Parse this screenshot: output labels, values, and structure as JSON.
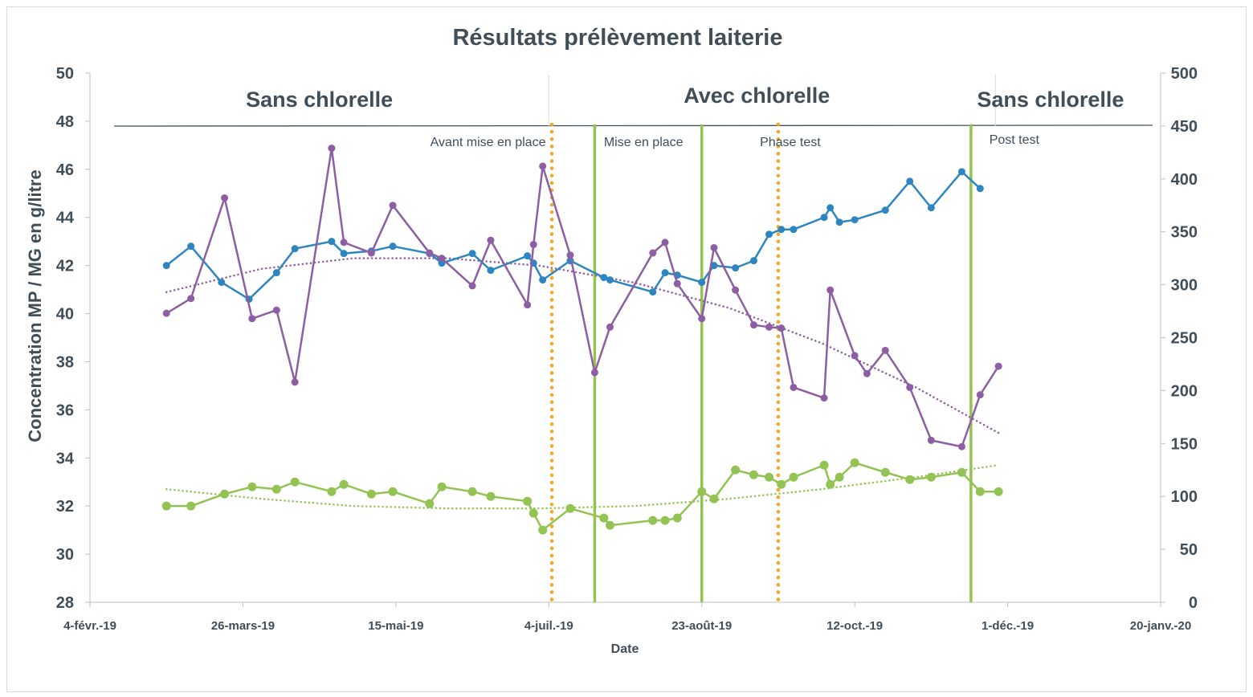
{
  "chart_data": {
    "type": "line",
    "title": "Résultats prélèvement laiterie",
    "xlabel": "Date",
    "ylabel": "Concentration MP / MG en g/litre",
    "y2label": "",
    "x_axis": {
      "type": "date",
      "min": "2019-02-04",
      "max": "2020-01-20",
      "ticks": [
        "4-févr.-19",
        "26-mars-19",
        "15-mai-19",
        "4-juil.-19",
        "23-août-19",
        "12-oct.-19",
        "1-déc.-19",
        "20-janv.-20"
      ],
      "tick_dates": [
        "2019-02-04",
        "2019-03-26",
        "2019-05-15",
        "2019-07-04",
        "2019-08-23",
        "2019-10-12",
        "2019-12-01",
        "2020-01-20"
      ]
    },
    "ylim": [
      28,
      50
    ],
    "yticks": [
      28,
      30,
      32,
      34,
      36,
      38,
      40,
      42,
      44,
      46,
      48,
      50
    ],
    "y2lim": [
      0,
      500
    ],
    "y2ticks": [
      0,
      50,
      100,
      150,
      200,
      250,
      300,
      350,
      400,
      450,
      500
    ],
    "grid": false,
    "period_labels": [
      {
        "text": "Sans chlorelle",
        "date": "2019-04-20"
      },
      {
        "text": "Avec chlorelle",
        "date": "2019-09-10"
      },
      {
        "text": "Sans chlorelle",
        "date": "2019-12-15"
      }
    ],
    "phase_labels": [
      {
        "text": "Avant mise en place",
        "date": "2019-07-03"
      },
      {
        "text": "Mise en place",
        "date": "2019-07-22"
      },
      {
        "text": "Phase test",
        "date": "2019-09-11"
      },
      {
        "text": "Post test",
        "date": "2019-11-25"
      }
    ],
    "vlines": [
      {
        "date": "2019-07-05",
        "style": "dotted",
        "color": "#f5a623"
      },
      {
        "date": "2019-07-19",
        "style": "solid",
        "color": "#92c353"
      },
      {
        "date": "2019-08-23",
        "style": "solid",
        "color": "#92c353"
      },
      {
        "date": "2019-09-17",
        "style": "dotted",
        "color": "#f5a623"
      },
      {
        "date": "2019-11-19",
        "style": "solid",
        "color": "#92c353"
      }
    ],
    "series": [
      {
        "name": "",
        "axis": "left",
        "color": "#2e86c1",
        "x": [
          "2019-03-01",
          "2019-03-09",
          "2019-03-19",
          "2019-03-28",
          "2019-04-06",
          "2019-04-12",
          "2019-04-24",
          "2019-04-28",
          "2019-05-07",
          "2019-05-14",
          "2019-05-26",
          "2019-05-30",
          "2019-06-09",
          "2019-06-15",
          "2019-06-27",
          "2019-06-29",
          "2019-07-02",
          "2019-07-11",
          "2019-07-22",
          "2019-07-24",
          "2019-08-07",
          "2019-08-11",
          "2019-08-15",
          "2019-08-23",
          "2019-08-27",
          "2019-09-03",
          "2019-09-09",
          "2019-09-14",
          "2019-09-18",
          "2019-09-22",
          "2019-10-02",
          "2019-10-04",
          "2019-10-07",
          "2019-10-12",
          "2019-10-22",
          "2019-10-30",
          "2019-11-06",
          "2019-11-16",
          "2019-11-22"
        ],
        "y": [
          42.0,
          42.8,
          41.3,
          40.6,
          41.7,
          42.7,
          43.0,
          42.5,
          42.6,
          42.8,
          42.5,
          42.1,
          42.5,
          41.8,
          42.4,
          42.1,
          41.4,
          42.2,
          41.5,
          41.4,
          40.9,
          41.7,
          41.6,
          41.3,
          42.0,
          41.9,
          42.2,
          43.3,
          43.5,
          43.5,
          44.0,
          44.4,
          43.8,
          43.9,
          44.3,
          45.5,
          44.4,
          45.9,
          45.2
        ]
      },
      {
        "name": "",
        "axis": "left",
        "color": "#8e5ea2",
        "x": [
          "2019-03-01",
          "2019-03-09",
          "2019-03-20",
          "2019-03-29",
          "2019-04-06",
          "2019-04-12",
          "2019-04-24",
          "2019-04-28",
          "2019-05-07",
          "2019-05-14",
          "2019-05-26",
          "2019-05-30",
          "2019-06-09",
          "2019-06-15",
          "2019-06-27",
          "2019-06-29",
          "2019-07-02",
          "2019-07-11",
          "2019-07-19",
          "2019-07-24",
          "2019-08-07",
          "2019-08-11",
          "2019-08-15",
          "2019-08-23",
          "2019-08-27",
          "2019-09-03",
          "2019-09-09",
          "2019-09-14",
          "2019-09-18",
          "2019-09-22",
          "2019-10-02",
          "2019-10-04",
          "2019-10-12",
          "2019-10-16",
          "2019-10-22",
          "2019-10-30",
          "2019-11-06",
          "2019-11-16",
          "2019-11-22",
          "2019-11-28"
        ],
        "y": [
          273,
          287,
          382,
          268,
          276,
          208,
          429,
          340,
          330,
          375,
          330,
          325,
          299,
          342,
          281,
          338,
          412,
          328,
          217,
          260,
          330,
          340,
          301,
          268,
          335,
          295,
          262,
          260,
          259,
          203,
          193,
          295,
          233,
          216,
          238,
          203,
          153,
          147,
          196,
          223
        ]
      },
      {
        "name": "",
        "axis": "left",
        "color": "#92c353",
        "x": [
          "2019-03-01",
          "2019-03-09",
          "2019-03-20",
          "2019-03-29",
          "2019-04-06",
          "2019-04-12",
          "2019-04-24",
          "2019-04-28",
          "2019-05-07",
          "2019-05-14",
          "2019-05-26",
          "2019-05-30",
          "2019-06-09",
          "2019-06-15",
          "2019-06-27",
          "2019-06-29",
          "2019-07-02",
          "2019-07-11",
          "2019-07-22",
          "2019-07-24",
          "2019-08-07",
          "2019-08-11",
          "2019-08-15",
          "2019-08-23",
          "2019-08-27",
          "2019-09-03",
          "2019-09-09",
          "2019-09-14",
          "2019-09-18",
          "2019-09-22",
          "2019-10-02",
          "2019-10-04",
          "2019-10-07",
          "2019-10-12",
          "2019-10-22",
          "2019-10-30",
          "2019-11-06",
          "2019-11-16",
          "2019-11-22",
          "2019-11-28"
        ],
        "y": [
          32.0,
          32.0,
          32.5,
          32.8,
          32.7,
          33.0,
          32.6,
          32.9,
          32.5,
          32.6,
          32.1,
          32.8,
          32.6,
          32.4,
          32.2,
          31.7,
          31.0,
          31.9,
          31.5,
          31.2,
          31.4,
          31.4,
          31.5,
          32.6,
          32.3,
          33.5,
          33.3,
          33.2,
          32.9,
          33.2,
          33.7,
          32.9,
          33.2,
          33.8,
          33.4,
          33.1,
          33.2,
          33.4,
          32.6,
          32.6
        ]
      }
    ],
    "trendlines": [
      {
        "color": "#8e5ea2",
        "style": "dotted",
        "type": "poly2",
        "x": [
          "2019-03-01",
          "2019-04-01",
          "2019-05-01",
          "2019-06-01",
          "2019-07-01",
          "2019-08-01",
          "2019-09-01",
          "2019-10-01",
          "2019-11-01",
          "2019-11-28"
        ],
        "y": [
          293,
          315,
          325,
          325,
          318,
          302,
          278,
          245,
          203,
          160
        ]
      },
      {
        "color": "#92c353",
        "style": "dotted",
        "type": "poly2",
        "x": [
          "2019-03-01",
          "2019-04-01",
          "2019-05-01",
          "2019-06-01",
          "2019-07-01",
          "2019-08-01",
          "2019-09-01",
          "2019-10-01",
          "2019-11-01",
          "2019-11-28"
        ],
        "y": [
          32.7,
          32.3,
          32.0,
          31.9,
          31.9,
          32.0,
          32.3,
          32.7,
          33.2,
          33.7
        ]
      }
    ]
  }
}
